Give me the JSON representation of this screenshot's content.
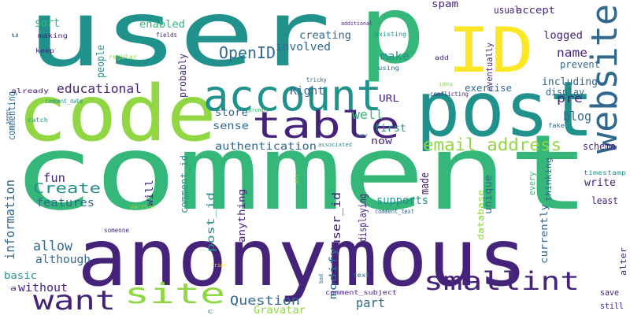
{
  "palette": {
    "dark_purple": "#46237a",
    "blue": "#30688e",
    "teal": "#21918c",
    "green": "#35b779",
    "light_green": "#90d743",
    "yellow": "#fde725"
  },
  "words": [
    {
      "text": "comment",
      "color": "#35b779"
    },
    {
      "text": "anonymous",
      "color": "#46237a"
    },
    {
      "text": "user",
      "color": "#21918c"
    },
    {
      "text": "code",
      "color": "#90d743"
    },
    {
      "text": "post",
      "color": "#21918c"
    },
    {
      "text": "p",
      "color": "#35b779"
    },
    {
      "text": "ID",
      "color": "#fde725"
    },
    {
      "text": "account",
      "color": "#21918c"
    },
    {
      "text": "table",
      "color": "#46237a"
    },
    {
      "text": "website",
      "color": "#30688e"
    },
    {
      "text": "site",
      "color": "#90d743"
    },
    {
      "text": "want",
      "color": "#46237a"
    },
    {
      "text": "smallint",
      "color": "#46237a"
    },
    {
      "text": "email address",
      "color": "#90d743"
    },
    {
      "text": "OpenID",
      "color": "#30688e"
    },
    {
      "text": "Create",
      "color": "#21918c"
    },
    {
      "text": "information",
      "color": "#30688e"
    },
    {
      "text": "allow",
      "color": "#30688e"
    },
    {
      "text": "Question",
      "color": "#30688e"
    },
    {
      "text": "part",
      "color": "#30688e"
    },
    {
      "text": "blog",
      "color": "#30688e"
    },
    {
      "text": "name",
      "color": "#46237a"
    },
    {
      "text": "pre",
      "color": "#46237a"
    },
    {
      "text": "authentication",
      "color": "#30688e"
    },
    {
      "text": "educational",
      "color": "#46237a"
    },
    {
      "text": "features",
      "color": "#30688e"
    },
    {
      "text": "commenting",
      "color": "#30688e"
    },
    {
      "text": "although",
      "color": "#30688e"
    },
    {
      "text": "without",
      "color": "#46237a"
    },
    {
      "text": "basic",
      "color": "#21918c"
    },
    {
      "text": "fun",
      "color": "#46237a"
    },
    {
      "text": "Right",
      "color": "#30688e"
    },
    {
      "text": "well",
      "color": "#35b779"
    },
    {
      "text": "made",
      "color": "#46237a"
    },
    {
      "text": "make",
      "color": "#21918c"
    },
    {
      "text": "involved",
      "color": "#30688e"
    },
    {
      "text": "creating",
      "color": "#30688e"
    },
    {
      "text": "enabled",
      "color": "#35b779"
    },
    {
      "text": "sort",
      "color": "#35b779"
    },
    {
      "text": "people",
      "color": "#21918c"
    },
    {
      "text": "probably",
      "color": "#46237a"
    },
    {
      "text": "store",
      "color": "#30688e"
    },
    {
      "text": "sense",
      "color": "#30688e"
    },
    {
      "text": "comment_id",
      "color": "#21918c"
    },
    {
      "text": "post_id",
      "color": "#21918c"
    },
    {
      "text": "user_id",
      "color": "#46237a"
    },
    {
      "text": "will",
      "color": "#46237a"
    },
    {
      "text": "anything",
      "color": "#46237a"
    },
    {
      "text": "modify",
      "color": "#30688e"
    },
    {
      "text": "Gravatar",
      "color": "#90d743"
    },
    {
      "text": "save",
      "color": "#46237a"
    },
    {
      "text": "still",
      "color": "#46237a"
    },
    {
      "text": "alter",
      "color": "#46237a"
    },
    {
      "text": "least",
      "color": "#46237a"
    },
    {
      "text": "write",
      "color": "#46237a"
    },
    {
      "text": "schema",
      "color": "#46237a"
    },
    {
      "text": "including",
      "color": "#30688e"
    },
    {
      "text": "display",
      "color": "#30688e"
    },
    {
      "text": "exercise",
      "color": "#30688e"
    },
    {
      "text": "prevent",
      "color": "#30688e"
    },
    {
      "text": "logged",
      "color": "#46237a"
    },
    {
      "text": "eventually",
      "color": "#46237a"
    },
    {
      "text": "usual",
      "color": "#46237a"
    },
    {
      "text": "accept",
      "color": "#46237a"
    },
    {
      "text": "spam",
      "color": "#46237a"
    },
    {
      "text": "URL",
      "color": "#46237a"
    },
    {
      "text": "now",
      "color": "#46237a"
    },
    {
      "text": "first",
      "color": "#21918c"
    },
    {
      "text": "unique",
      "color": "#30688e"
    },
    {
      "text": "every",
      "color": "#35b779"
    },
    {
      "text": "currently",
      "color": "#30688e"
    },
    {
      "text": "thinking",
      "color": "#30688e"
    },
    {
      "text": "displaying",
      "color": "#46237a"
    },
    {
      "text": "supports",
      "color": "#21918c"
    },
    {
      "text": "database",
      "color": "#90d743"
    },
    {
      "text": "making",
      "color": "#46237a"
    },
    {
      "text": "keep",
      "color": "#46237a"
    },
    {
      "text": "regular",
      "color": "#90d743"
    },
    {
      "text": "fields",
      "color": "#46237a"
    },
    {
      "text": "additional",
      "color": "#46237a"
    },
    {
      "text": "existing",
      "color": "#21918c"
    },
    {
      "text": "using",
      "color": "#30688e"
    },
    {
      "text": "add",
      "color": "#46237a"
    },
    {
      "text": "tricky",
      "color": "#30688e"
    },
    {
      "text": "idea",
      "color": "#90d743"
    },
    {
      "text": "log",
      "color": "#21918c"
    },
    {
      "text": "conflicting",
      "color": "#46237a"
    },
    {
      "text": "fake",
      "color": "#30688e"
    },
    {
      "text": "already",
      "color": "#46237a"
    },
    {
      "text": "comment_date",
      "color": "#21918c"
    },
    {
      "text": "catch",
      "color": "#21918c"
    },
    {
      "text": "seems",
      "color": "#30688e"
    },
    {
      "text": "prompt",
      "color": "#35b779"
    },
    {
      "text": "associated",
      "color": "#21918c"
    },
    {
      "text": "new",
      "color": "#30688e"
    },
    {
      "text": "etc",
      "color": "#90d743"
    },
    {
      "text": "timestamp",
      "color": "#21918c"
    },
    {
      "text": "varchar",
      "color": "#90d743"
    },
    {
      "text": "someone",
      "color": "#46237a"
    },
    {
      "text": "comment_text",
      "color": "#30688e"
    },
    {
      "text": "tries",
      "color": "#fde725"
    },
    {
      "text": "bad",
      "color": "#30688e"
    },
    {
      "text": "text",
      "color": "#30688e"
    },
    {
      "text": "comment_subject",
      "color": "#46237a"
    },
    {
      "text": "u",
      "color": "#30688e"
    },
    {
      "text": "a",
      "color": "#46237a"
    },
    {
      "text": "c",
      "color": "#21918c"
    }
  ]
}
